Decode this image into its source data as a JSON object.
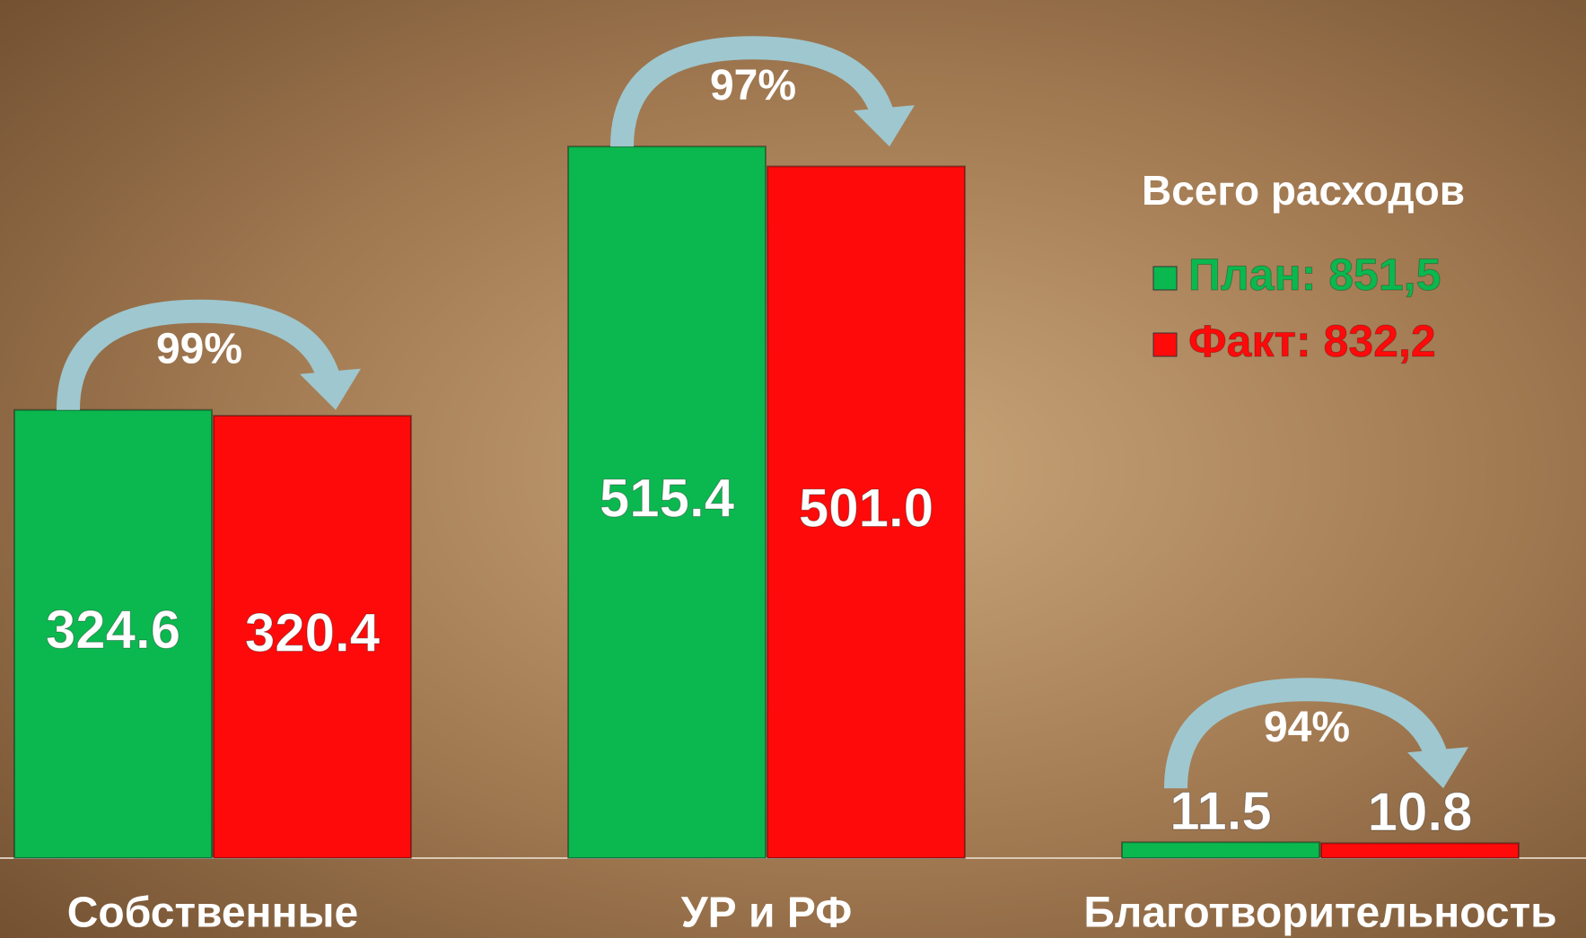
{
  "chart_data": {
    "type": "bar",
    "categories": [
      "Собственные",
      "УР и РФ",
      "Благотворительность"
    ],
    "series": [
      {
        "name": "План: 851,5",
        "color": "#0bb84f",
        "values": [
          324.6,
          515.4,
          11.5
        ]
      },
      {
        "name": "Факт: 832,2",
        "color": "#ff0a0a",
        "values": [
          320.4,
          501.0,
          10.8
        ],
        "value_labels": [
          "320.4",
          "501.0",
          "10.8"
        ]
      }
    ],
    "annotations": [
      "99%",
      "97%",
      "94%"
    ],
    "legend_title": "Всего расходов",
    "legend": "upper right",
    "ylim": [
      0,
      550
    ]
  }
}
